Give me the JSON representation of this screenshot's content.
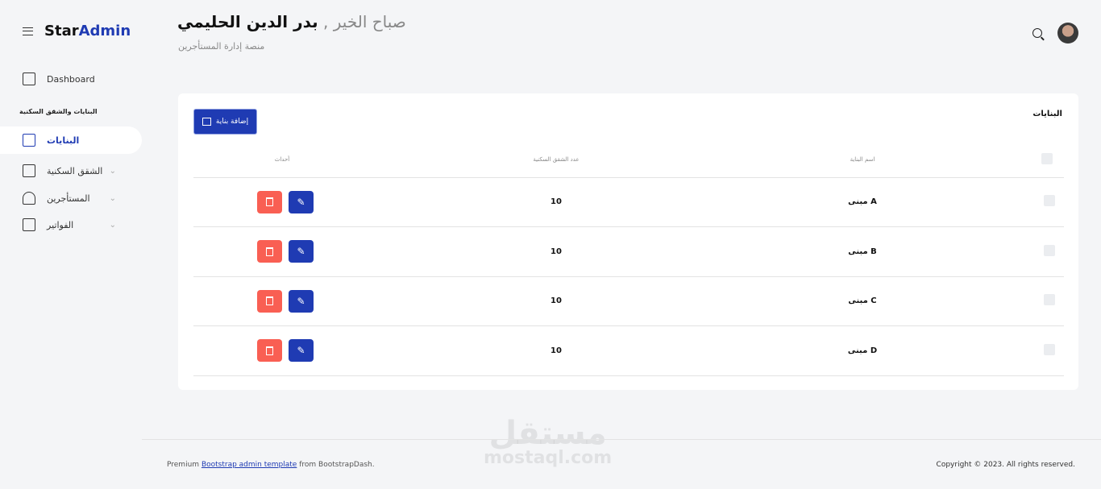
{
  "brand": {
    "first": "Star",
    "second": "Admin"
  },
  "header": {
    "greeting": "صباح الخير ,",
    "name": "بدر الدين الحليمي",
    "subtitle": "منصة إدارة المستأجرين"
  },
  "sidebar": {
    "dashboard": "Dashboard",
    "section": "البنايات والشقق السكنية",
    "items": [
      {
        "label": "البنايات"
      },
      {
        "label": "الشقق السكنية"
      },
      {
        "label": "المستأجرين"
      },
      {
        "label": "الفواتير"
      }
    ]
  },
  "card": {
    "title": "البنايات",
    "add_label": "إضافة بناية",
    "columns": [
      "اسم البناية",
      "عدد الشقق السكنية",
      "أحداث"
    ],
    "rows": [
      {
        "name": "مبنى A",
        "count": "10"
      },
      {
        "name": "مبنى B",
        "count": "10"
      },
      {
        "name": "مبنى C",
        "count": "10"
      },
      {
        "name": "مبنى D",
        "count": "10"
      }
    ]
  },
  "footer": {
    "prefix": "Premium",
    "link": "Bootstrap admin template",
    "suffix": "from BootstrapDash.",
    "copyright": "Copyright © 2023. All rights reserved."
  },
  "watermark": {
    "arabic": "مستقل",
    "latin": "mostaql.com"
  },
  "colors": {
    "primary": "#1f3bb3",
    "danger": "#f95f53"
  }
}
